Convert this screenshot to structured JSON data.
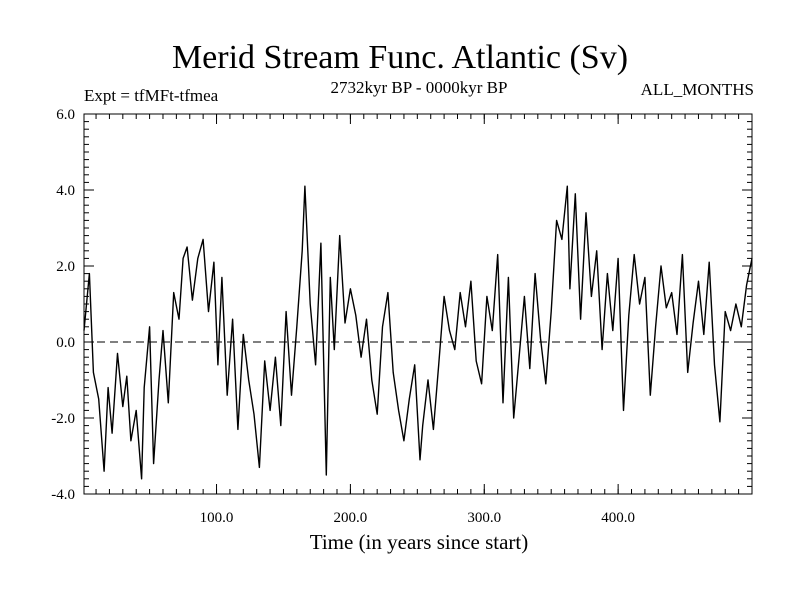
{
  "chart_data": {
    "type": "line",
    "title": "Merid Stream Func. Atlantic (Sv)",
    "subtitle_left": "Expt = tfMFt-tfmea",
    "subtitle_center": "2732kyr BP - 0000kyr BP",
    "subtitle_right": "ALL_MONTHS",
    "xlabel": "Time (in years since start)",
    "ylabel": "",
    "xlim": [
      1,
      500
    ],
    "ylim": [
      -4.0,
      6.0
    ],
    "xticks": [
      100,
      200,
      300,
      400
    ],
    "xtick_labels": [
      "100.0",
      "200.0",
      "300.0",
      "400.0"
    ],
    "yticks": [
      -4,
      -2,
      0,
      2,
      4,
      6
    ],
    "ytick_labels": [
      "-4.0",
      "-2.0",
      "0.0",
      "2.0",
      "4.0",
      "6.0"
    ],
    "reference_line": {
      "y": 0.0,
      "style": "dashed"
    },
    "series": [
      {
        "name": "Merid Stream Func. Atlantic",
        "x": [
          1,
          5,
          8,
          12,
          16,
          19,
          22,
          26,
          30,
          33,
          36,
          40,
          44,
          46,
          50,
          53,
          57,
          60,
          64,
          68,
          72,
          75,
          78,
          82,
          86,
          90,
          94,
          98,
          101,
          104,
          108,
          112,
          116,
          120,
          124,
          128,
          132,
          136,
          140,
          144,
          148,
          152,
          156,
          160,
          164,
          166,
          170,
          174,
          178,
          182,
          185,
          188,
          192,
          196,
          200,
          204,
          208,
          212,
          216,
          220,
          224,
          228,
          232,
          236,
          240,
          244,
          248,
          252,
          254,
          258,
          262,
          266,
          270,
          274,
          278,
          282,
          286,
          290,
          294,
          298,
          302,
          306,
          310,
          314,
          318,
          322,
          326,
          330,
          334,
          338,
          342,
          346,
          350,
          354,
          358,
          362,
          364,
          368,
          372,
          376,
          380,
          384,
          388,
          392,
          396,
          400,
          404,
          408,
          412,
          416,
          420,
          424,
          428,
          432,
          436,
          440,
          444,
          448,
          452,
          456,
          460,
          464,
          468,
          472,
          476,
          480,
          484,
          488,
          492,
          496,
          500
        ],
        "values": [
          0.3,
          1.8,
          -0.8,
          -1.5,
          -3.4,
          -1.2,
          -2.4,
          -0.3,
          -1.7,
          -0.9,
          -2.6,
          -1.8,
          -3.6,
          -1.2,
          0.4,
          -3.2,
          -1.0,
          0.3,
          -1.6,
          1.3,
          0.6,
          2.2,
          2.5,
          1.1,
          2.2,
          2.7,
          0.8,
          2.1,
          -0.6,
          1.7,
          -1.4,
          0.6,
          -2.3,
          0.2,
          -1.0,
          -1.9,
          -3.3,
          -0.5,
          -1.8,
          -0.4,
          -2.2,
          0.8,
          -1.4,
          0.4,
          2.4,
          4.1,
          1.0,
          -0.6,
          2.6,
          -3.5,
          1.7,
          -0.2,
          2.8,
          0.5,
          1.4,
          0.7,
          -0.4,
          0.6,
          -1.0,
          -1.9,
          0.4,
          1.3,
          -0.8,
          -1.8,
          -2.6,
          -1.5,
          -0.6,
          -3.1,
          -2.2,
          -1.0,
          -2.3,
          -0.6,
          1.2,
          0.3,
          -0.2,
          1.3,
          0.4,
          1.6,
          -0.5,
          -1.1,
          1.2,
          0.3,
          2.3,
          -1.6,
          1.7,
          -2.0,
          -0.4,
          1.2,
          -0.7,
          1.8,
          0.1,
          -1.1,
          0.8,
          3.2,
          2.7,
          4.1,
          1.4,
          3.9,
          0.6,
          3.4,
          1.2,
          2.4,
          -0.2,
          1.8,
          0.3,
          2.2,
          -1.8,
          0.7,
          2.3,
          1.0,
          1.7,
          -1.4,
          0.4,
          2.0,
          0.9,
          1.3,
          0.2,
          2.3,
          -0.8,
          0.5,
          1.6,
          0.2,
          2.1,
          -0.6,
          -2.1,
          0.8,
          0.3,
          1.0,
          0.4,
          1.5,
          2.2
        ]
      }
    ]
  }
}
